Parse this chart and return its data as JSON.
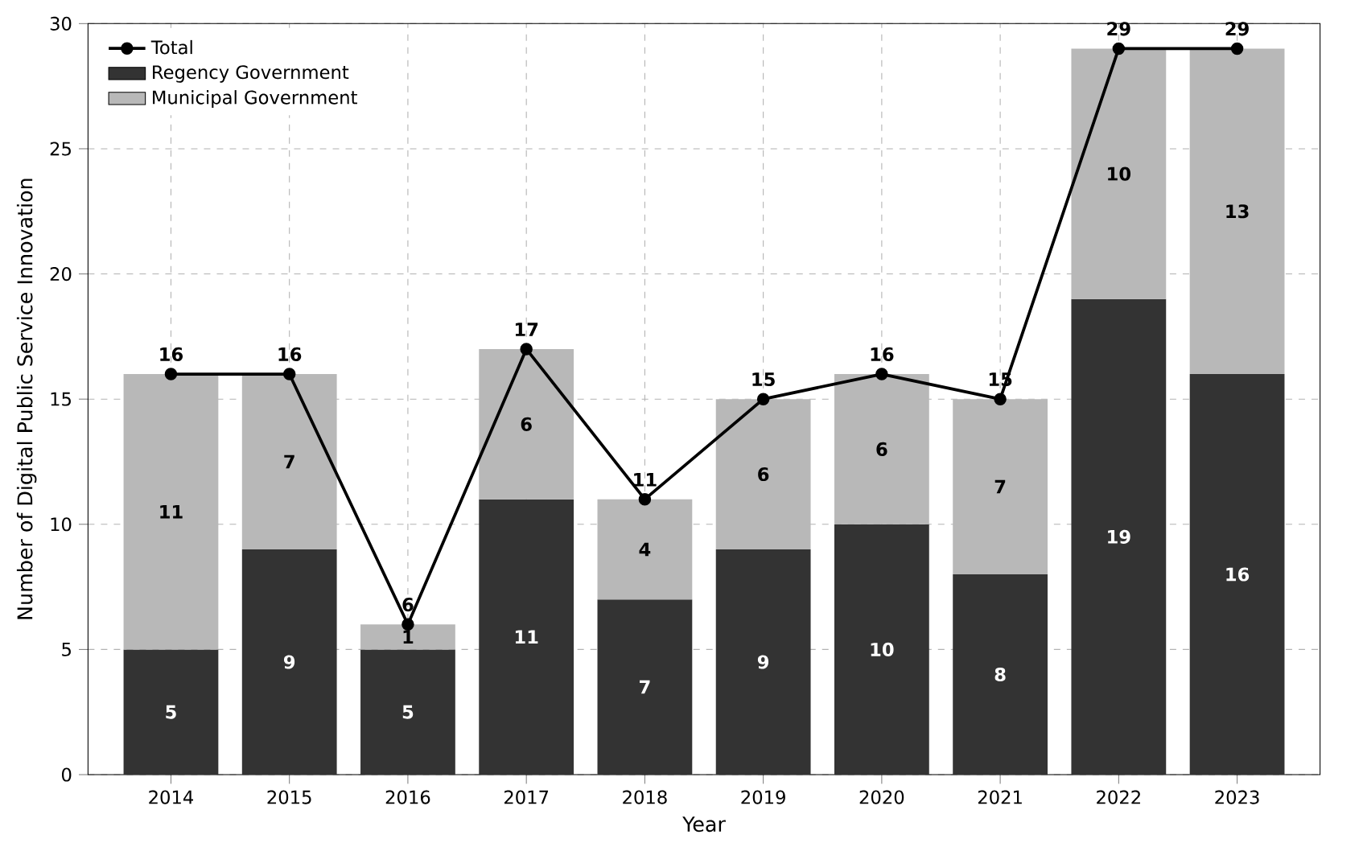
{
  "chart_data": {
    "type": "bar",
    "stacked": true,
    "xlabel": "Year",
    "ylabel": "Number of Digital Public Service Innovation",
    "categories": [
      "2014",
      "2015",
      "2016",
      "2017",
      "2018",
      "2019",
      "2020",
      "2021",
      "2022",
      "2023"
    ],
    "series": [
      {
        "name": "Total",
        "type": "line",
        "color": "#000000",
        "values": [
          16,
          16,
          6,
          17,
          11,
          15,
          16,
          15,
          29,
          29
        ]
      },
      {
        "name": "Regency Government",
        "color": "#333333",
        "values": [
          5,
          9,
          5,
          11,
          7,
          9,
          10,
          8,
          19,
          16
        ]
      },
      {
        "name": "Municipal Government",
        "color": "#b8b8b8",
        "values": [
          11,
          7,
          1,
          6,
          4,
          6,
          6,
          7,
          10,
          13
        ]
      }
    ],
    "ylim": [
      0,
      30
    ],
    "yticks": [
      0,
      5,
      10,
      15,
      20,
      25,
      30
    ],
    "grid": true,
    "legend": "top left",
    "marker": "circle",
    "data_labels": true
  }
}
